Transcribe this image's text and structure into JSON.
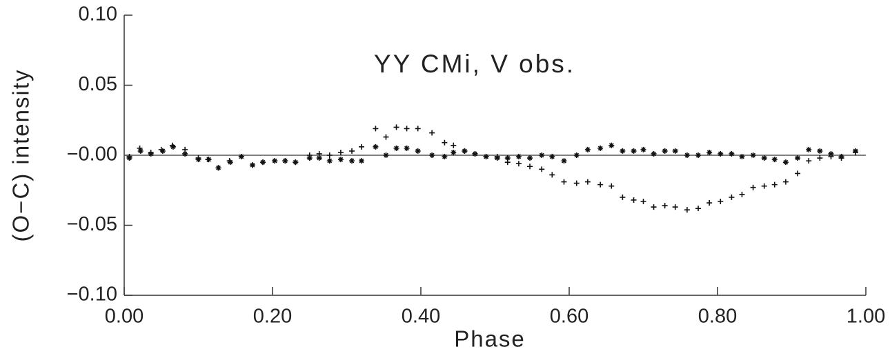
{
  "chart_data": {
    "type": "scatter",
    "title": "YY CMi, V obs.",
    "x_label": "Phase",
    "y_label": "(O−C) intensity",
    "xlim": [
      0,
      1
    ],
    "ylim": [
      -0.1,
      0.1
    ],
    "xticks": [
      {
        "value": 0,
        "label": "0.00"
      },
      {
        "value": 0.2,
        "label": "0.20"
      },
      {
        "value": 0.4,
        "label": "0.40"
      },
      {
        "value": 0.6,
        "label": "0.60"
      },
      {
        "value": 0.8,
        "label": "0.80"
      },
      {
        "value": 1,
        "label": "1.00"
      }
    ],
    "yticks": [
      {
        "value": -0.1,
        "label": "−0.10"
      },
      {
        "value": -0.05,
        "label": "−0.05"
      },
      {
        "value": 0,
        "label": "−0.00"
      },
      {
        "value": 0.05,
        "label": "0.05"
      },
      {
        "value": 0.1,
        "label": "0.10"
      }
    ],
    "reference_line": 0,
    "series": [
      {
        "marker": "plus",
        "color": "#111111",
        "x": [
          0.007,
          0.021,
          0.036,
          0.05,
          0.065,
          0.082,
          0.1,
          0.113,
          0.127,
          0.142,
          0.158,
          0.173,
          0.187,
          0.203,
          0.217,
          0.231,
          0.25,
          0.263,
          0.277,
          0.292,
          0.307,
          0.32,
          0.339,
          0.353,
          0.367,
          0.381,
          0.396,
          0.415,
          0.432,
          0.444,
          0.459,
          0.473,
          0.488,
          0.503,
          0.517,
          0.532,
          0.547,
          0.563,
          0.577,
          0.593,
          0.61,
          0.625,
          0.642,
          0.657,
          0.672,
          0.687,
          0.7,
          0.714,
          0.729,
          0.743,
          0.759,
          0.774,
          0.789,
          0.804,
          0.819,
          0.833,
          0.848,
          0.863,
          0.877,
          0.892,
          0.908,
          0.923,
          0.938,
          0.953,
          0.967,
          0.986
        ],
        "values": [
          -0.001,
          0.005,
          0.002,
          0.004,
          0.007,
          0.004,
          -0.002,
          -0.003,
          -0.009,
          -0.004,
          -0.001,
          -0.007,
          -0.005,
          -0.004,
          -0.004,
          -0.005,
          0.0,
          0.001,
          0.0,
          0.002,
          0.003,
          0.006,
          0.019,
          0.013,
          0.02,
          0.019,
          0.019,
          0.016,
          0.009,
          0.007,
          0.003,
          0.001,
          -0.001,
          -0.001,
          -0.005,
          -0.006,
          -0.008,
          -0.01,
          -0.014,
          -0.019,
          -0.02,
          -0.019,
          -0.021,
          -0.022,
          -0.03,
          -0.032,
          -0.033,
          -0.037,
          -0.036,
          -0.037,
          -0.039,
          -0.038,
          -0.034,
          -0.033,
          -0.03,
          -0.028,
          -0.023,
          -0.022,
          -0.021,
          -0.019,
          -0.013,
          -0.004,
          -0.002,
          -0.001,
          -0.002,
          0.002
        ]
      },
      {
        "marker": "star",
        "color": "#111111",
        "x": [
          0.007,
          0.022,
          0.036,
          0.052,
          0.066,
          0.082,
          0.1,
          0.114,
          0.127,
          0.143,
          0.158,
          0.173,
          0.187,
          0.203,
          0.217,
          0.231,
          0.25,
          0.263,
          0.277,
          0.292,
          0.307,
          0.32,
          0.339,
          0.353,
          0.367,
          0.381,
          0.396,
          0.415,
          0.432,
          0.444,
          0.459,
          0.473,
          0.488,
          0.503,
          0.517,
          0.532,
          0.547,
          0.563,
          0.577,
          0.593,
          0.61,
          0.625,
          0.642,
          0.657,
          0.672,
          0.687,
          0.7,
          0.714,
          0.729,
          0.743,
          0.759,
          0.774,
          0.789,
          0.804,
          0.819,
          0.833,
          0.848,
          0.863,
          0.877,
          0.892,
          0.908,
          0.923,
          0.938,
          0.953,
          0.967,
          0.986
        ],
        "values": [
          -0.002,
          0.003,
          0.001,
          0.003,
          0.006,
          0.001,
          -0.003,
          -0.003,
          -0.009,
          -0.005,
          -0.001,
          -0.007,
          -0.005,
          -0.004,
          -0.004,
          -0.005,
          -0.002,
          -0.002,
          -0.004,
          -0.003,
          -0.004,
          -0.004,
          0.006,
          0.0,
          0.005,
          0.005,
          0.003,
          0.0,
          -0.001,
          0.002,
          0.003,
          0.001,
          -0.001,
          -0.002,
          -0.002,
          -0.001,
          -0.002,
          0.0,
          -0.001,
          -0.004,
          0.0,
          0.004,
          0.005,
          0.007,
          0.003,
          0.003,
          0.004,
          0.001,
          0.003,
          0.003,
          0.0,
          0.0,
          0.002,
          0.001,
          0.001,
          -0.001,
          0.0,
          -0.002,
          -0.003,
          -0.005,
          -0.002,
          0.004,
          0.003,
          0.001,
          -0.001,
          0.003
        ]
      }
    ]
  }
}
